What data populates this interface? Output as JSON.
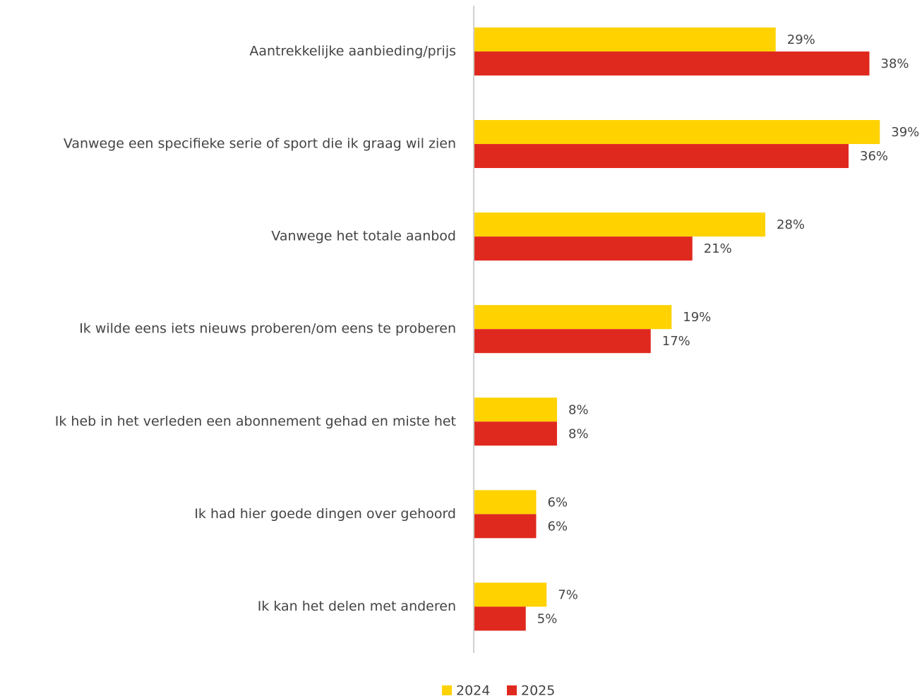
{
  "chart_data": {
    "type": "barh",
    "categories": [
      "Aantrekkelijke aanbieding/prijs",
      "Vanwege een specifieke serie of sport die ik graag wil zien",
      "Vanwege het totale aanbod",
      "Ik wilde eens iets nieuws proberen/om eens te proberen",
      "Ik heb in het verleden een abonnement gehad en miste het",
      "Ik had hier goede dingen over gehoord",
      "Ik kan het delen met anderen"
    ],
    "series": [
      {
        "name": "2024",
        "color": "#FFD200",
        "values": [
          29,
          39,
          28,
          19,
          8,
          6,
          7
        ],
        "value_labels": [
          "29%",
          "39%",
          "28%",
          "19%",
          "8%",
          "6%",
          "7%"
        ]
      },
      {
        "name": "2025",
        "color": "#E0291E",
        "values": [
          38,
          36,
          21,
          17,
          8,
          6,
          5
        ],
        "value_labels": [
          "38%",
          "36%",
          "21%",
          "17%",
          "8%",
          "6%",
          "5%"
        ]
      }
    ],
    "xlim": [
      0,
      40
    ],
    "legend": "bottom"
  }
}
